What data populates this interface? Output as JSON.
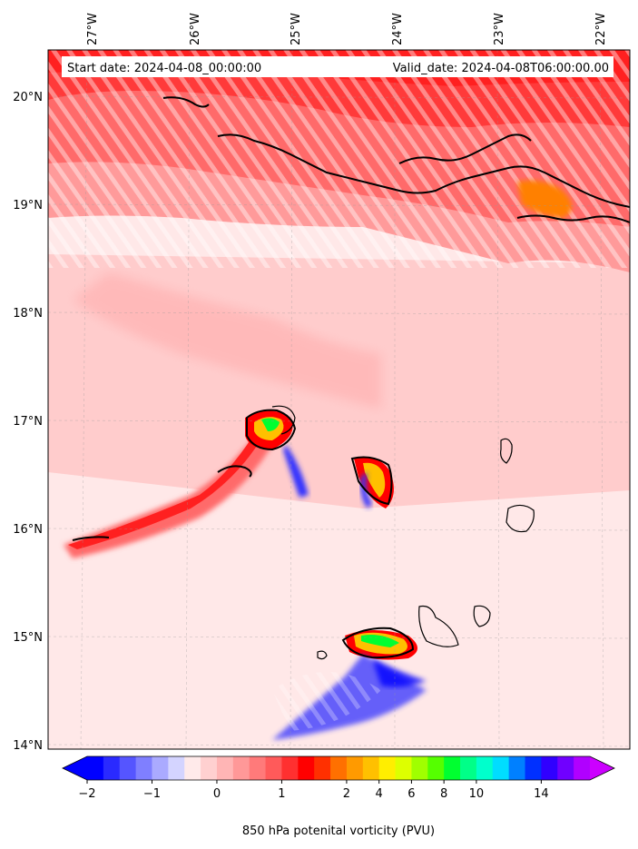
{
  "map": {
    "lon_labels": [
      "27°W",
      "26°W",
      "25°W",
      "24°W",
      "23°W",
      "22°W"
    ],
    "lat_labels": [
      "20°N",
      "19°N",
      "18°N",
      "17°N",
      "16°N",
      "15°N",
      "14°N"
    ],
    "start_date": "Start date: 2024-04-08_00:00:00",
    "valid_date": "Valid_date: 2024-04-08T06:00:00.00"
  },
  "colorbar": {
    "label": "850 hPa potenital vorticity (PVU)",
    "tick_labels": [
      "−2",
      "−1",
      "0",
      "1",
      "2",
      "4",
      "6",
      "8",
      "10",
      "14"
    ],
    "colors": [
      "#0000ff",
      "#2a2aff",
      "#5555ff",
      "#7f7fff",
      "#aaaaff",
      "#d4d4ff",
      "#ffeaea",
      "#ffd0d0",
      "#ffb5b5",
      "#ff9898",
      "#ff7a7a",
      "#ff5a5a",
      "#ff3030",
      "#ff0000",
      "#ff3000",
      "#ff7000",
      "#ff9a00",
      "#ffc000",
      "#ffee00",
      "#ddff00",
      "#a0ff00",
      "#55ff00",
      "#00ff30",
      "#00ff88",
      "#00ffcc",
      "#00ddff",
      "#0080ff",
      "#0030ff",
      "#3000ff",
      "#7000ff",
      "#b000ff"
    ],
    "under_color": "#0000ff",
    "over_color": "#cc00ff"
  }
}
